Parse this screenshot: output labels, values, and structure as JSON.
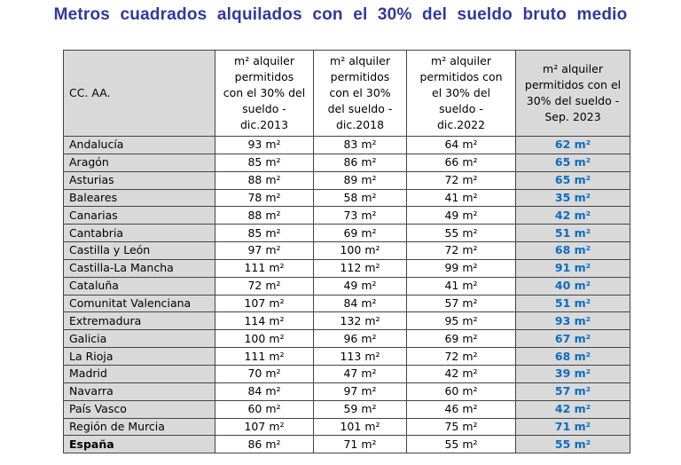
{
  "title": "Metros cuadrados alquilados con el 30% del sueldo bruto medio",
  "columns": {
    "region": "CC. AA.",
    "c2013": [
      "m² alquiler",
      "permitidos",
      "con el 30% del",
      "sueldo -",
      "dic.2013"
    ],
    "c2018": [
      "m² alquiler",
      "permitidos",
      "con el 30%",
      "del sueldo -",
      "dic.2018"
    ],
    "c2022": [
      "m² alquiler",
      "permitidos con",
      "el 30% del",
      "sueldo -",
      "dic.2022"
    ],
    "c2023": [
      "m² alquiler",
      "permitidos con el",
      "30% del sueldo -",
      "Sep. 2023"
    ]
  },
  "unit": "m²",
  "rows": [
    {
      "region": "Andalucía",
      "v2013": "93 m²",
      "v2018": "83 m²",
      "v2022": "64 m²",
      "v2023": "62 m²"
    },
    {
      "region": "Aragón",
      "v2013": "85 m²",
      "v2018": "86 m²",
      "v2022": "66 m²",
      "v2023": "65 m²"
    },
    {
      "region": "Asturias",
      "v2013": "88 m²",
      "v2018": "89 m²",
      "v2022": "72 m²",
      "v2023": "65 m²"
    },
    {
      "region": "Baleares",
      "v2013": "78 m²",
      "v2018": "58 m²",
      "v2022": "41 m²",
      "v2023": "35 m²"
    },
    {
      "region": "Canarias",
      "v2013": "88 m²",
      "v2018": "73 m²",
      "v2022": "49 m²",
      "v2023": "42 m²"
    },
    {
      "region": "Cantabria",
      "v2013": "85 m²",
      "v2018": "69 m²",
      "v2022": "55 m²",
      "v2023": "51 m²"
    },
    {
      "region": "Castilla y León",
      "v2013": "97 m²",
      "v2018": "100 m²",
      "v2022": "72 m²",
      "v2023": "68 m²"
    },
    {
      "region": "Castilla-La Mancha",
      "v2013": "111 m²",
      "v2018": "112 m²",
      "v2022": "99 m²",
      "v2023": "91 m²"
    },
    {
      "region": "Cataluña",
      "v2013": "72 m²",
      "v2018": "49 m²",
      "v2022": "41 m²",
      "v2023": "40 m²"
    },
    {
      "region": "Comunitat Valenciana",
      "v2013": "107 m²",
      "v2018": "84 m²",
      "v2022": "57 m²",
      "v2023": "51 m²"
    },
    {
      "region": "Extremadura",
      "v2013": "114 m²",
      "v2018": "132 m²",
      "v2022": "95 m²",
      "v2023": "93 m²"
    },
    {
      "region": "Galicia",
      "v2013": "100 m²",
      "v2018": "96 m²",
      "v2022": "69 m²",
      "v2023": "67 m²"
    },
    {
      "region": "La Rioja",
      "v2013": "111 m²",
      "v2018": "113 m²",
      "v2022": "72 m²",
      "v2023": "68 m²"
    },
    {
      "region": "Madrid",
      "v2013": "70 m²",
      "v2018": "47 m²",
      "v2022": "42 m²",
      "v2023": "39 m²"
    },
    {
      "region": "Navarra",
      "v2013": "84 m²",
      "v2018": "97 m²",
      "v2022": "60 m²",
      "v2023": "57 m²"
    },
    {
      "region": "País Vasco",
      "v2013": "60 m²",
      "v2018": "59 m²",
      "v2022": "46 m²",
      "v2023": "42 m²"
    },
    {
      "region": "Región de Murcia",
      "v2013": "107 m²",
      "v2018": "101 m²",
      "v2022": "75 m²",
      "v2023": "71 m²"
    },
    {
      "region": "España",
      "v2013": "86 m²",
      "v2018": "71 m²",
      "v2022": "55 m²",
      "v2023": "55 m²"
    }
  ],
  "colors": {
    "title": "#2f3a9e",
    "highlight_value": "#0b6cc0",
    "shaded_cell": "#d9d9d9"
  }
}
